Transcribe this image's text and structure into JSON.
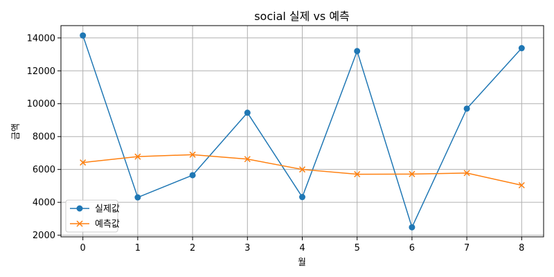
{
  "chart_data": {
    "type": "line",
    "title": "social 실제 vs 예측",
    "xlabel": "월",
    "ylabel": "금액",
    "x": [
      0,
      1,
      2,
      3,
      4,
      5,
      6,
      7,
      8
    ],
    "xlim": [
      -0.4,
      8.4
    ],
    "ylim": [
      1900,
      14750
    ],
    "yticks": [
      2000,
      4000,
      6000,
      8000,
      10000,
      12000,
      14000
    ],
    "grid": true,
    "legend_position": "lower-left",
    "series": [
      {
        "name": "실제값",
        "color": "#1f77b4",
        "marker": "circle",
        "values": [
          14150,
          4300,
          5650,
          9450,
          4320,
          13200,
          2480,
          9700,
          13380
        ]
      },
      {
        "name": "예측값",
        "color": "#ff7f0e",
        "marker": "x",
        "values": [
          6420,
          6780,
          6900,
          6630,
          6000,
          5710,
          5720,
          5780,
          5040
        ]
      }
    ]
  }
}
